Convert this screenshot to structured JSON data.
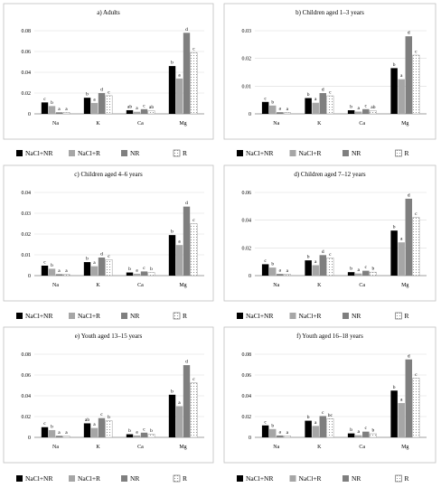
{
  "legend": [
    {
      "name": "NaCl+NR",
      "fill": "#000000",
      "pattern": "solid"
    },
    {
      "name": "NaCl+R",
      "fill": "#a6a6a6",
      "pattern": "solid"
    },
    {
      "name": "NR",
      "fill": "#7f7f7f",
      "pattern": "solid"
    },
    {
      "name": "R",
      "fill": "#ffffff",
      "pattern": "dots"
    }
  ],
  "chart_data": [
    {
      "type": "bar",
      "title": "a) Adults",
      "categories": [
        "Na",
        "K",
        "Ca",
        "Mg"
      ],
      "ylim": [
        0,
        0.08
      ],
      "yticks": [
        0,
        0.02,
        0.04,
        0.06,
        0.08
      ],
      "ytick_labels": [
        "0",
        "0.02",
        "0.04",
        "0.06",
        "0.08"
      ],
      "series": [
        {
          "name": "NaCl+NR",
          "values": [
            0.011,
            0.0155,
            0.0035,
            0.046
          ],
          "labels": [
            "c",
            "b",
            "ab",
            "b"
          ]
        },
        {
          "name": "NaCl+R",
          "values": [
            0.0075,
            0.0105,
            0.002,
            0.034
          ],
          "labels": [
            "b",
            "a",
            "a",
            "a"
          ]
        },
        {
          "name": "NR",
          "values": [
            0.0015,
            0.02,
            0.0045,
            0.078
          ],
          "labels": [
            "a",
            "d",
            "c",
            "d"
          ]
        },
        {
          "name": "R",
          "values": [
            0.0013,
            0.0175,
            0.003,
            0.059
          ],
          "labels": [
            "a",
            "c",
            "ab",
            "c"
          ]
        }
      ]
    },
    {
      "type": "bar",
      "title": "b) Children aged 1–3 years",
      "categories": [
        "Na",
        "K",
        "Ca",
        "Mg"
      ],
      "ylim": [
        0,
        0.03
      ],
      "yticks": [
        0,
        0.01,
        0.02,
        0.03
      ],
      "ytick_labels": [
        "0",
        "0.01",
        "0.02",
        "0.03"
      ],
      "series": [
        {
          "name": "NaCl+NR",
          "values": [
            0.0043,
            0.0057,
            0.0013,
            0.0165
          ],
          "labels": [
            "c",
            "b",
            "b",
            "b"
          ]
        },
        {
          "name": "NaCl+R",
          "values": [
            0.003,
            0.004,
            0.0008,
            0.0125
          ],
          "labels": [
            "b",
            "a",
            "a",
            "a"
          ]
        },
        {
          "name": "NR",
          "values": [
            0.0006,
            0.0075,
            0.0017,
            0.028
          ],
          "labels": [
            "a",
            "d",
            "c",
            "d"
          ]
        },
        {
          "name": "R",
          "values": [
            0.0005,
            0.0065,
            0.0011,
            0.0212
          ],
          "labels": [
            "a",
            "c",
            "ab",
            "c"
          ]
        }
      ]
    },
    {
      "type": "bar",
      "title": "c) Children aged 4–6 years",
      "categories": [
        "Na",
        "K",
        "Ca",
        "Mg"
      ],
      "ylim": [
        0,
        0.04
      ],
      "yticks": [
        0,
        0.01,
        0.02,
        0.03,
        0.04
      ],
      "ytick_labels": [
        "0",
        "0.01",
        "0.02",
        "0.03",
        "0.04"
      ],
      "series": [
        {
          "name": "NaCl+NR",
          "values": [
            0.0048,
            0.0065,
            0.0015,
            0.0195
          ],
          "labels": [
            "c",
            "b",
            "b",
            "b"
          ]
        },
        {
          "name": "NaCl+R",
          "values": [
            0.0033,
            0.0045,
            0.0009,
            0.0147
          ],
          "labels": [
            "b",
            "a",
            "a",
            "a"
          ]
        },
        {
          "name": "NR",
          "values": [
            0.0007,
            0.0087,
            0.002,
            0.0332
          ],
          "labels": [
            "a",
            "d",
            "c",
            "d"
          ]
        },
        {
          "name": "R",
          "values": [
            0.0006,
            0.0077,
            0.0015,
            0.025
          ],
          "labels": [
            "a",
            "c",
            "b",
            "c"
          ]
        }
      ]
    },
    {
      "type": "bar",
      "title": "d) Children aged 7–12 years",
      "categories": [
        "Na",
        "K",
        "Ca",
        "Mg"
      ],
      "ylim": [
        0,
        0.06
      ],
      "yticks": [
        0,
        0.02,
        0.04,
        0.06
      ],
      "ytick_labels": [
        "0",
        "0.02",
        "0.04",
        "0.06"
      ],
      "series": [
        {
          "name": "NaCl+NR",
          "values": [
            0.0082,
            0.011,
            0.0025,
            0.0325
          ],
          "labels": [
            "c",
            "b",
            "b",
            "b"
          ]
        },
        {
          "name": "NaCl+R",
          "values": [
            0.0058,
            0.0075,
            0.0015,
            0.024
          ],
          "labels": [
            "b",
            "a",
            "a",
            "a"
          ]
        },
        {
          "name": "NR",
          "values": [
            0.0012,
            0.0148,
            0.0035,
            0.0555
          ],
          "labels": [
            "a",
            "d",
            "c",
            "d"
          ]
        },
        {
          "name": "R",
          "values": [
            0.001,
            0.0128,
            0.0025,
            0.042
          ],
          "labels": [
            "a",
            "c",
            "b",
            "c"
          ]
        }
      ]
    },
    {
      "type": "bar",
      "title": "e) Youth aged 13–15 years",
      "categories": [
        "Na",
        "K",
        "Ca",
        "Mg"
      ],
      "ylim": [
        0,
        0.08
      ],
      "yticks": [
        0,
        0.02,
        0.04,
        0.06,
        0.08
      ],
      "ytick_labels": [
        "0",
        "0.02",
        "0.04",
        "0.06",
        "0.08"
      ],
      "series": [
        {
          "name": "NaCl+NR",
          "values": [
            0.0098,
            0.0135,
            0.003,
            0.041
          ],
          "labels": [
            "c",
            "ab",
            "b",
            "b"
          ]
        },
        {
          "name": "NaCl+R",
          "values": [
            0.007,
            0.009,
            0.0018,
            0.03
          ],
          "labels": [
            "b",
            "a",
            "a",
            "a"
          ]
        },
        {
          "name": "NR",
          "values": [
            0.0015,
            0.0185,
            0.0045,
            0.0695
          ],
          "labels": [
            "a",
            "c",
            "c",
            "d"
          ]
        },
        {
          "name": "R",
          "values": [
            0.0012,
            0.016,
            0.003,
            0.0525
          ],
          "labels": [
            "a",
            "b",
            "b",
            "c"
          ]
        }
      ]
    },
    {
      "type": "bar",
      "title": "f) Youth aged 16–18 years",
      "categories": [
        "Na",
        "K",
        "Ca",
        "Mg"
      ],
      "ylim": [
        0,
        0.08
      ],
      "yticks": [
        0,
        0.02,
        0.04,
        0.06,
        0.08
      ],
      "ytick_labels": [
        "0",
        "0.02",
        "0.04",
        "0.06",
        "0.08"
      ],
      "series": [
        {
          "name": "NaCl+NR",
          "values": [
            0.0115,
            0.016,
            0.0038,
            0.045
          ],
          "labels": [
            "c",
            "b",
            "b",
            "b"
          ]
        },
        {
          "name": "NaCl+R",
          "values": [
            0.008,
            0.011,
            0.002,
            0.033
          ],
          "labels": [
            "b",
            "a",
            "a",
            "a"
          ]
        },
        {
          "name": "NR",
          "values": [
            0.0018,
            0.0205,
            0.0055,
            0.075
          ],
          "labels": [
            "a",
            "c",
            "c",
            "d"
          ]
        },
        {
          "name": "R",
          "values": [
            0.0015,
            0.018,
            0.0035,
            0.057
          ],
          "labels": [
            "a",
            "bc",
            "b",
            "c"
          ]
        }
      ]
    }
  ]
}
